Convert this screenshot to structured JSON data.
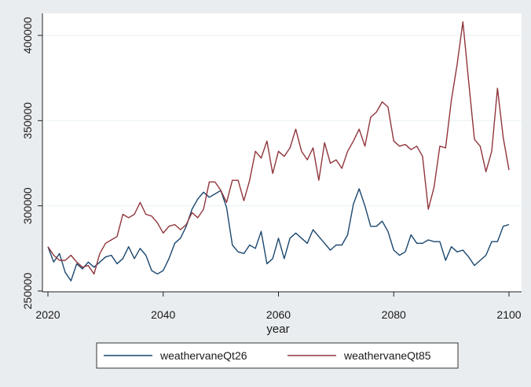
{
  "chart_data": {
    "type": "line",
    "title": "",
    "xlabel": "year",
    "ylabel": "",
    "xlim": [
      2020,
      2100
    ],
    "ylim": [
      250000,
      410000
    ],
    "xticks": [
      2020,
      2040,
      2060,
      2080,
      2100
    ],
    "yticks": [
      250000,
      300000,
      350000,
      400000
    ],
    "xtick_labels": [
      "2020",
      "2040",
      "2060",
      "2080",
      "2100"
    ],
    "ytick_labels": [
      "250000",
      "300000",
      "350000",
      "400000"
    ],
    "grid": "horizontal",
    "legend_position": "bottom",
    "series": [
      {
        "name": "weathervaneQt26",
        "color": "#1a476f",
        "x": [
          2020,
          2021,
          2022,
          2023,
          2024,
          2025,
          2026,
          2027,
          2028,
          2029,
          2030,
          2031,
          2032,
          2033,
          2034,
          2035,
          2036,
          2037,
          2038,
          2039,
          2040,
          2041,
          2042,
          2043,
          2044,
          2045,
          2046,
          2047,
          2048,
          2049,
          2050,
          2051,
          2052,
          2053,
          2054,
          2055,
          2056,
          2057,
          2058,
          2059,
          2060,
          2061,
          2062,
          2063,
          2064,
          2065,
          2066,
          2067,
          2068,
          2069,
          2070,
          2071,
          2072,
          2073,
          2074,
          2075,
          2076,
          2077,
          2078,
          2079,
          2080,
          2081,
          2082,
          2083,
          2084,
          2085,
          2086,
          2087,
          2088,
          2089,
          2090,
          2091,
          2092,
          2093,
          2094,
          2095,
          2096,
          2097,
          2098,
          2099,
          2100
        ],
        "y": [
          276000,
          267000,
          272000,
          261000,
          256000,
          266000,
          263000,
          267000,
          264000,
          267000,
          270000,
          271000,
          266000,
          269000,
          276000,
          269000,
          275000,
          271000,
          262000,
          260000,
          262000,
          269000,
          278000,
          281000,
          288000,
          298000,
          304000,
          308000,
          305000,
          307000,
          309000,
          299000,
          277000,
          273000,
          272000,
          277000,
          275000,
          285000,
          266000,
          269000,
          281000,
          269000,
          281000,
          284000,
          281000,
          278000,
          286000,
          282000,
          278000,
          274000,
          277000,
          277000,
          283000,
          301000,
          310000,
          300000,
          288000,
          288000,
          291000,
          285000,
          274000,
          271000,
          273000,
          283000,
          278000,
          278000,
          280000,
          279000,
          279000,
          268000,
          276000,
          273000,
          274000,
          270000,
          265000,
          268000,
          271000,
          279000,
          279000,
          288000,
          289000
        ]
      },
      {
        "name": "weathervaneQt85",
        "color": "#90353b",
        "x": [
          2020,
          2021,
          2022,
          2023,
          2024,
          2025,
          2026,
          2027,
          2028,
          2029,
          2030,
          2031,
          2032,
          2033,
          2034,
          2035,
          2036,
          2037,
          2038,
          2039,
          2040,
          2041,
          2042,
          2043,
          2044,
          2045,
          2046,
          2047,
          2048,
          2049,
          2050,
          2051,
          2052,
          2053,
          2054,
          2055,
          2056,
          2057,
          2058,
          2059,
          2060,
          2061,
          2062,
          2063,
          2064,
          2065,
          2066,
          2067,
          2068,
          2069,
          2070,
          2071,
          2072,
          2073,
          2074,
          2075,
          2076,
          2077,
          2078,
          2079,
          2080,
          2081,
          2082,
          2083,
          2084,
          2085,
          2086,
          2087,
          2088,
          2089,
          2090,
          2091,
          2092,
          2093,
          2094,
          2095,
          2096,
          2097,
          2098,
          2099,
          2100
        ],
        "y": [
          276000,
          271000,
          268000,
          268000,
          271000,
          267000,
          264000,
          265000,
          260000,
          272000,
          278000,
          280000,
          282000,
          295000,
          293000,
          295000,
          302000,
          295000,
          294000,
          290000,
          284000,
          288000,
          289000,
          286000,
          289000,
          296000,
          293000,
          298000,
          314000,
          314000,
          309000,
          302000,
          315000,
          315000,
          303000,
          315000,
          332000,
          328000,
          338000,
          319000,
          332000,
          329000,
          334000,
          345000,
          332000,
          327000,
          334000,
          315000,
          337000,
          325000,
          327000,
          322000,
          332000,
          338000,
          345000,
          335000,
          352000,
          355000,
          361000,
          358000,
          338000,
          335000,
          336000,
          333000,
          335000,
          329000,
          298000,
          311000,
          335000,
          334000,
          362000,
          383000,
          408000,
          373000,
          339000,
          335000,
          320000,
          332000,
          369000,
          340000,
          321000
        ]
      }
    ]
  }
}
